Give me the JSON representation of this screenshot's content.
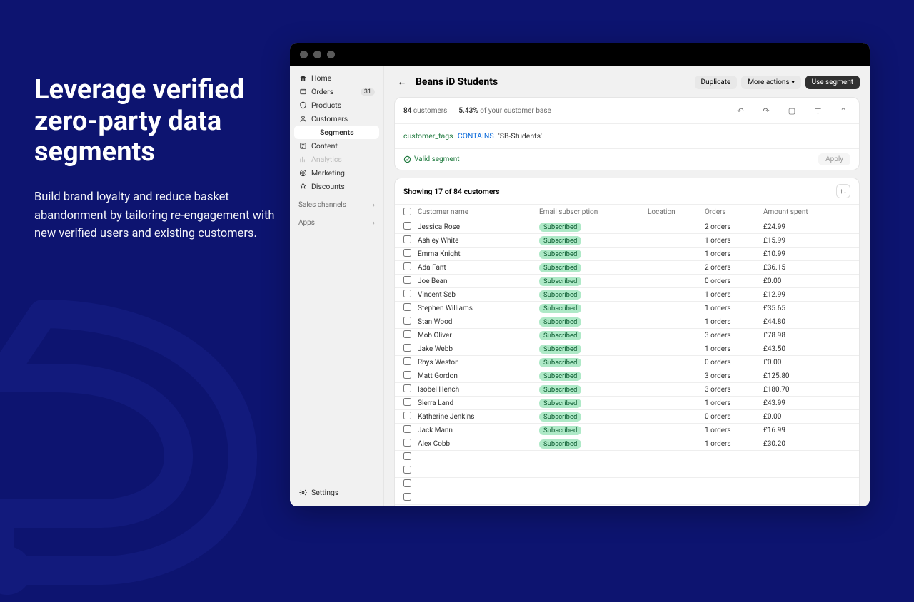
{
  "marketing": {
    "headline": "Leverage verified zero-party data segments",
    "body": "Build brand loyalty and reduce basket abandonment by tailoring re-engagement with new verified users and existing customers."
  },
  "colors": {
    "page_bg": "#0d1470",
    "window_bg": "#f1f1f1",
    "titlebar": "#000000",
    "primary_btn": "#303030",
    "chip_bg": "#aee9c7",
    "chip_text": "#0a5a2f",
    "query_kw1": "#1f7a3e",
    "query_kw2": "#0969da"
  },
  "sidebar": {
    "items": [
      {
        "icon": "home",
        "label": "Home"
      },
      {
        "icon": "orders",
        "label": "Orders",
        "badge": "31"
      },
      {
        "icon": "products",
        "label": "Products"
      },
      {
        "icon": "customers",
        "label": "Customers"
      },
      {
        "icon": "",
        "label": "Segments",
        "sub": true,
        "active": true
      },
      {
        "icon": "content",
        "label": "Content"
      },
      {
        "icon": "analytics",
        "label": "Analytics",
        "muted": true
      },
      {
        "icon": "marketing",
        "label": "Marketing"
      },
      {
        "icon": "discounts",
        "label": "Discounts"
      }
    ],
    "sections": [
      "Sales channels",
      "Apps"
    ],
    "settings": "Settings"
  },
  "header": {
    "title": "Beans iD Students",
    "duplicate": "Duplicate",
    "more": "More actions",
    "use": "Use segment"
  },
  "filter": {
    "count_num": "84",
    "count_label": "customers",
    "pct": "5.43%",
    "pct_label": "of your customer base",
    "query_kw1": "customer_tags",
    "query_kw2": "CONTAINS",
    "query_str": "'SB-Students'",
    "valid": "Valid segment",
    "apply": "Apply"
  },
  "table": {
    "showing": "Showing 17 of 84 customers",
    "cols": {
      "name": "Customer name",
      "email": "Email subscription",
      "location": "Location",
      "orders": "Orders",
      "amount": "Amount spent"
    },
    "chip": "Subscribed",
    "rows": [
      {
        "name": "Jessica Rose",
        "orders": "2 orders",
        "amount": "£24.99"
      },
      {
        "name": "Ashley White",
        "orders": "1 orders",
        "amount": "£15.99"
      },
      {
        "name": "Emma Knight",
        "orders": "1 orders",
        "amount": "£10.99"
      },
      {
        "name": "Ada Fant",
        "orders": "2 orders",
        "amount": "£36.15"
      },
      {
        "name": "Joe Bean",
        "orders": "0 orders",
        "amount": "£0.00"
      },
      {
        "name": "Vincent Seb",
        "orders": "1 orders",
        "amount": "£12.99"
      },
      {
        "name": "Stephen Williams",
        "orders": "1 orders",
        "amount": "£35.65"
      },
      {
        "name": "Stan Wood",
        "orders": "1 orders",
        "amount": "£44.80"
      },
      {
        "name": "Mob Oliver",
        "orders": "3 orders",
        "amount": "£78.98"
      },
      {
        "name": "Jake Webb",
        "orders": "1 orders",
        "amount": "£43.50"
      },
      {
        "name": "Rhys Weston",
        "orders": "0 orders",
        "amount": "£0.00"
      },
      {
        "name": "Matt Gordon",
        "orders": "3 orders",
        "amount": "£125.80"
      },
      {
        "name": "Isobel Hench",
        "orders": "3 orders",
        "amount": "£180.70"
      },
      {
        "name": "Sierra Land",
        "orders": "1 orders",
        "amount": "£43.99"
      },
      {
        "name": "Katherine Jenkins",
        "orders": "0 orders",
        "amount": "£0.00"
      },
      {
        "name": "Jack Mann",
        "orders": "1 orders",
        "amount": "£16.99"
      },
      {
        "name": "Alex Cobb",
        "orders": "1 orders",
        "amount": "£30.20"
      }
    ],
    "empty_rows": 5
  }
}
